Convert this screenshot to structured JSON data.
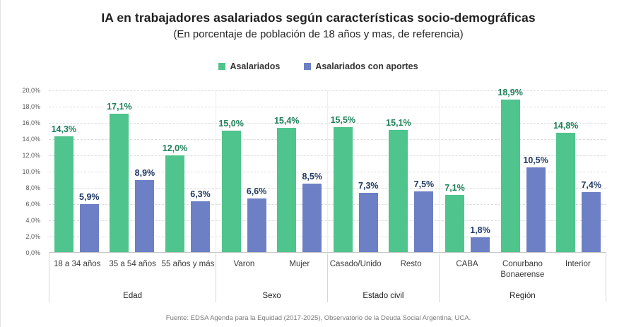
{
  "page": {
    "title": "IA en trabajadores asalariados según características socio-demográficas",
    "subtitle": "(En porcentaje de población de 18 años y mas, de referencia)",
    "source": "Fuente: EDSA Agenda para la Equidad (2017-2025), Observatorio de la Deuda Social Argentina, UCA."
  },
  "legend": [
    {
      "label": "Asalariados",
      "color": "#4fc48c"
    },
    {
      "label": "Asalariados con aportes",
      "color": "#6d80c5"
    }
  ],
  "colors": {
    "asalariados_bar": "#4fc48c",
    "aportes_bar": "#6d80c5",
    "asalariados_value_label": "#1e7f58",
    "aportes_value_label": "#1f3864"
  },
  "chart_data": {
    "type": "bar",
    "title": "IA en trabajadores asalariados según características socio-demográficas",
    "subtitle": "(En porcentaje de población de 18 años y mas, de referencia)",
    "xlabel": "",
    "ylabel": "",
    "ylim": [
      0,
      20
    ],
    "grid": true,
    "legend_position": "top",
    "ytick_labels": [
      "0,0%",
      "2,0%",
      "4,0%",
      "6,0%",
      "8,0%",
      "10,0%",
      "12,0%",
      "14,0%",
      "16,0%",
      "18,0%",
      "20,0%"
    ],
    "series_names": [
      "Asalariados",
      "Asalariados con aportes"
    ],
    "groups": [
      {
        "label": "Edad",
        "categories": [
          "18 a 34 años",
          "35 a 54 años",
          "55 años y más"
        ],
        "series": [
          {
            "name": "Asalariados",
            "values": [
              14.3,
              17.1,
              12.0
            ],
            "labels": [
              "14,3%",
              "17,1%",
              "12,0%"
            ]
          },
          {
            "name": "Asalariados con aportes",
            "values": [
              5.9,
              8.9,
              6.3
            ],
            "labels": [
              "5,9%",
              "8,9%",
              "6,3%"
            ]
          }
        ]
      },
      {
        "label": "Sexo",
        "categories": [
          "Varon",
          "Mujer"
        ],
        "series": [
          {
            "name": "Asalariados",
            "values": [
              15.0,
              15.4
            ],
            "labels": [
              "15,0%",
              "15,4%"
            ]
          },
          {
            "name": "Asalariados con aportes",
            "values": [
              6.6,
              8.5
            ],
            "labels": [
              "6,6%",
              "8,5%"
            ]
          }
        ]
      },
      {
        "label": "Estado civil",
        "categories": [
          "Casado/Unido",
          "Resto"
        ],
        "series": [
          {
            "name": "Asalariados",
            "values": [
              15.5,
              15.1
            ],
            "labels": [
              "15,5%",
              "15,1%"
            ]
          },
          {
            "name": "Asalariados con aportes",
            "values": [
              7.3,
              7.5
            ],
            "labels": [
              "7,3%",
              "7,5%"
            ]
          }
        ]
      },
      {
        "label": "Región",
        "categories": [
          "CABA",
          "Conurbano Bonaerense",
          "Interior"
        ],
        "series": [
          {
            "name": "Asalariados",
            "values": [
              7.1,
              18.9,
              14.8
            ],
            "labels": [
              "7,1%",
              "18,9%",
              "14,8%"
            ]
          },
          {
            "name": "Asalariados con aportes",
            "values": [
              1.8,
              10.5,
              7.4
            ],
            "labels": [
              "1,8%",
              "10,5%",
              "7,4%"
            ]
          }
        ]
      }
    ],
    "source": "Fuente: EDSA Agenda para la Equidad (2017-2025), Observatorio de la Deuda Social Argentina, UCA."
  }
}
